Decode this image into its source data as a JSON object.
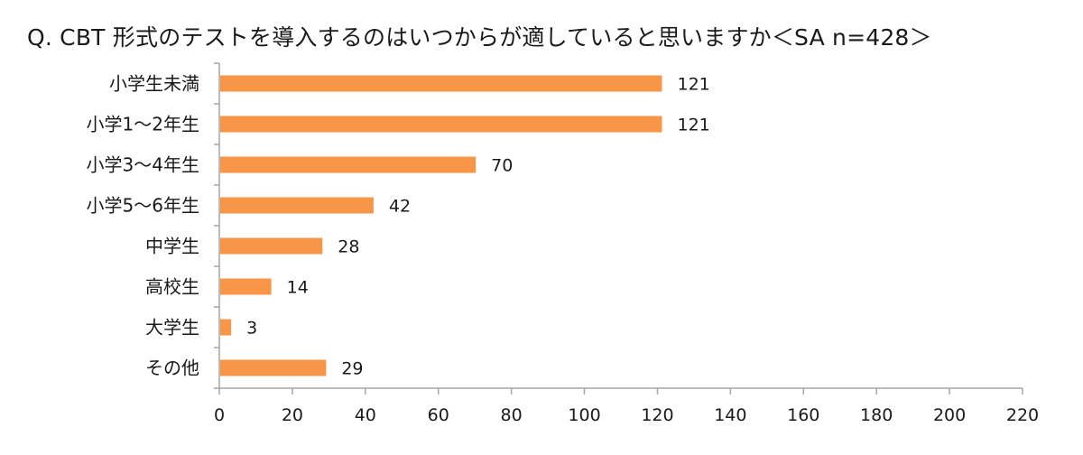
{
  "title": "Q. CBT 形式のテストを導入するのはいつからが適していると思いますか＜SA n=428＞",
  "chart_data": {
    "type": "bar",
    "orientation": "horizontal",
    "title": "Q. CBT 形式のテストを導入するのはいつからが適していると思いますか＜SA n=428＞",
    "categories": [
      "小学生未満",
      "小学1～2年生",
      "小学3～4年生",
      "小学5～6年生",
      "中学生",
      "高校生",
      "大学生",
      "その他"
    ],
    "values": [
      121,
      121,
      70,
      42,
      28,
      14,
      3,
      29
    ],
    "xlim": [
      0,
      220
    ],
    "xticks": [
      0,
      20,
      40,
      60,
      80,
      100,
      120,
      140,
      160,
      180,
      200,
      220
    ],
    "xlabel": "",
    "ylabel": "",
    "data_labels": true,
    "grid": false,
    "legend": "none",
    "bar_color": "#F79646"
  }
}
